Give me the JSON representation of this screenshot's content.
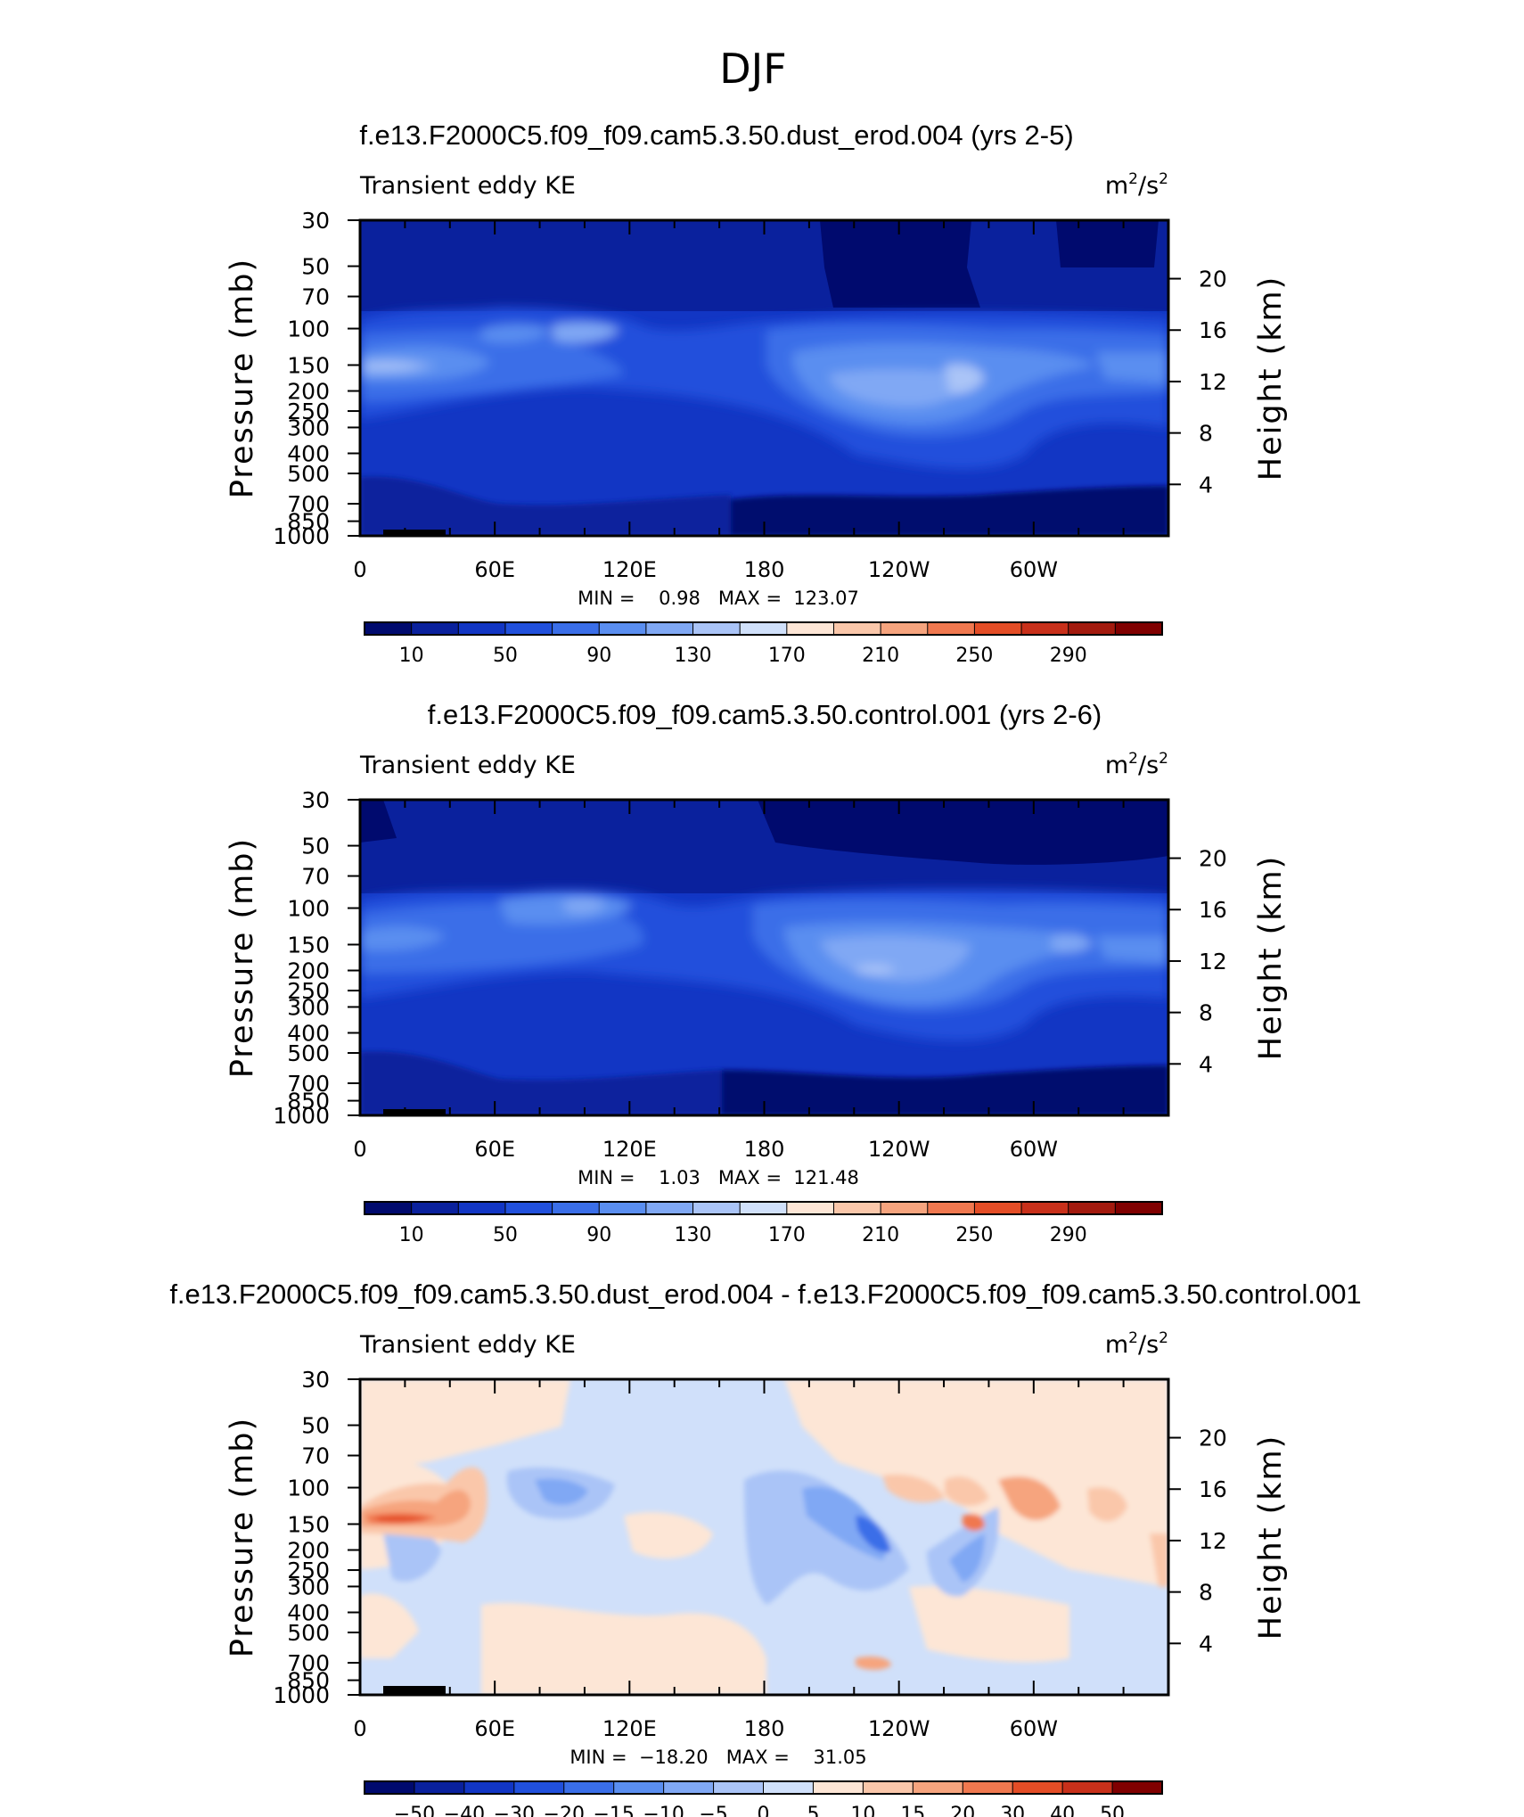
{
  "figure_title": "DJF",
  "chart_data": [
    {
      "type": "heatmap",
      "title": "f.e13.F2000C5.f09_f09.cam5.3.50.dust_erod.004 (yrs 2-5)",
      "left_label": "Transient eddy KE",
      "units_base": "m",
      "units_exp1": "2",
      "units_mid": "/s",
      "units_exp2": "2",
      "ylabel": "Pressure (mb)",
      "ylabel_right": "Height (km)",
      "xticks": [
        "0",
        "60E",
        "120E",
        "180",
        "120W",
        "60W"
      ],
      "yticks": [
        "30",
        "50",
        "70",
        "100",
        "150",
        "200",
        "250",
        "300",
        "400",
        "500",
        "700",
        "850",
        "1000"
      ],
      "yticks_right": [
        "20",
        "16",
        "12",
        "8",
        "4"
      ],
      "stats": "MIN =    0.98   MAX =  123.07",
      "min": 0.98,
      "max": 123.07,
      "colorbar_labels": [
        "10",
        "50",
        "90",
        "130",
        "170",
        "210",
        "250",
        "290"
      ],
      "colorbar_colors": [
        "#000a6e",
        "#0a219d",
        "#1236c4",
        "#2150dc",
        "#3a6ee8",
        "#5a8ef0",
        "#80a8f4",
        "#aac4f7",
        "#d0e0fa",
        "#fde6d6",
        "#fac7aa",
        "#f6a47e",
        "#f0784f",
        "#e44d26",
        "#c8301a",
        "#a31a0e",
        "#800000"
      ],
      "field": [
        {
          "level": "high",
          "values": "deep blue stratosphere above ~80 mb, darkest near 120W-60W"
        },
        {
          "level": "max",
          "values": "~90-123 m2/s2 jet cores near 150-200 mb at 20E and 150W-60W"
        },
        {
          "level": "low",
          "values": "dark blue near surface below 700 mb"
        }
      ]
    },
    {
      "type": "heatmap",
      "title": "f.e13.F2000C5.f09_f09.cam5.3.50.control.001 (yrs 2-6)",
      "left_label": "Transient eddy KE",
      "units_base": "m",
      "units_exp1": "2",
      "units_mid": "/s",
      "units_exp2": "2",
      "ylabel": "Pressure (mb)",
      "ylabel_right": "Height (km)",
      "xticks": [
        "0",
        "60E",
        "120E",
        "180",
        "120W",
        "60W"
      ],
      "yticks": [
        "30",
        "50",
        "70",
        "100",
        "150",
        "200",
        "250",
        "300",
        "400",
        "500",
        "700",
        "850",
        "1000"
      ],
      "yticks_right": [
        "20",
        "16",
        "12",
        "8",
        "4"
      ],
      "stats": "MIN =    1.03   MAX =  121.48",
      "min": 1.03,
      "max": 121.48,
      "colorbar_labels": [
        "10",
        "50",
        "90",
        "130",
        "170",
        "210",
        "250",
        "290"
      ],
      "colorbar_colors": [
        "#000a6e",
        "#0a219d",
        "#1236c4",
        "#2150dc",
        "#3a6ee8",
        "#5a8ef0",
        "#80a8f4",
        "#aac4f7",
        "#d0e0fa",
        "#fde6d6",
        "#fac7aa",
        "#f6a47e",
        "#f0784f",
        "#e44d26",
        "#c8301a",
        "#a31a0e",
        "#800000"
      ]
    },
    {
      "type": "heatmap",
      "title": "f.e13.F2000C5.f09_f09.cam5.3.50.dust_erod.004 - f.e13.F2000C5.f09_f09.cam5.3.50.control.001",
      "left_label": "Transient eddy KE",
      "units_base": "m",
      "units_exp1": "2",
      "units_mid": "/s",
      "units_exp2": "2",
      "ylabel": "Pressure (mb)",
      "ylabel_right": "Height (km)",
      "xticks": [
        "0",
        "60E",
        "120E",
        "180",
        "120W",
        "60W"
      ],
      "yticks": [
        "30",
        "50",
        "70",
        "100",
        "150",
        "200",
        "250",
        "300",
        "400",
        "500",
        "700",
        "850",
        "1000"
      ],
      "yticks_right": [
        "20",
        "16",
        "12",
        "8",
        "4"
      ],
      "stats": "MIN =  −18.20   MAX =    31.05",
      "min": -18.2,
      "max": 31.05,
      "colorbar_labels": [
        "−50",
        "−40",
        "−30",
        "−20",
        "−15",
        "−10",
        "−5",
        "0",
        "5",
        "10",
        "15",
        "20",
        "30",
        "40",
        "50"
      ],
      "colorbar_colors": [
        "#000a6e",
        "#0a219d",
        "#1236c4",
        "#2150dc",
        "#3a6ee8",
        "#5a8ef0",
        "#80a8f4",
        "#aac4f7",
        "#d0e0fa",
        "#fde6d6",
        "#fac7aa",
        "#f6a47e",
        "#f0784f",
        "#e44d26",
        "#c8301a",
        "#800000"
      ]
    }
  ]
}
